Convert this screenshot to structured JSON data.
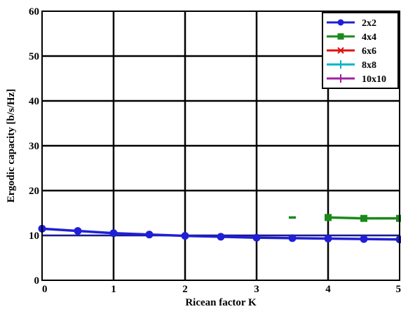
{
  "chart_data": {
    "type": "line",
    "xlabel": "Ricean factor K",
    "ylabel": "Ergodic capacity [b/s/Hz]",
    "xlim": [
      0,
      5
    ],
    "ylim": [
      0,
      60
    ],
    "xticks": [
      "0",
      "1",
      "2",
      "3",
      "4",
      "5"
    ],
    "yticks": [
      "0",
      "10",
      "20",
      "30",
      "40",
      "50",
      "60"
    ],
    "grid": true,
    "legend_position": "top-right",
    "series": [
      {
        "name": "2x2",
        "color": "#1f1fd6",
        "marker": "circle",
        "x": [
          0,
          0.5,
          1,
          1.5,
          2,
          2.5,
          3,
          3.5,
          4,
          4.5,
          5
        ],
        "y": [
          11.5,
          11.0,
          10.5,
          10.2,
          9.9,
          9.7,
          9.5,
          9.4,
          9.3,
          9.2,
          9.1
        ]
      },
      {
        "name": "4x4",
        "color": "#1a8a1a",
        "marker": "square",
        "x": [
          3.45,
          3.55,
          4,
          4.5,
          5
        ],
        "y": [
          14.0,
          14.0,
          14.0,
          13.8,
          13.8
        ],
        "segments": [
          [
            0,
            1
          ],
          [
            2,
            4
          ]
        ]
      },
      {
        "name": "6x6",
        "color": "#e01010",
        "marker": "x",
        "x": [],
        "y": []
      },
      {
        "name": "8x8",
        "color": "#00b5c8",
        "marker": "plus",
        "x": [],
        "y": []
      },
      {
        "name": "10x10",
        "color": "#a020a0",
        "marker": "plus",
        "x": [],
        "y": []
      }
    ],
    "reference_line": {
      "color": "#1f1fd6",
      "x": [
        0,
        5
      ],
      "y": [
        10.0,
        10.0
      ]
    }
  }
}
